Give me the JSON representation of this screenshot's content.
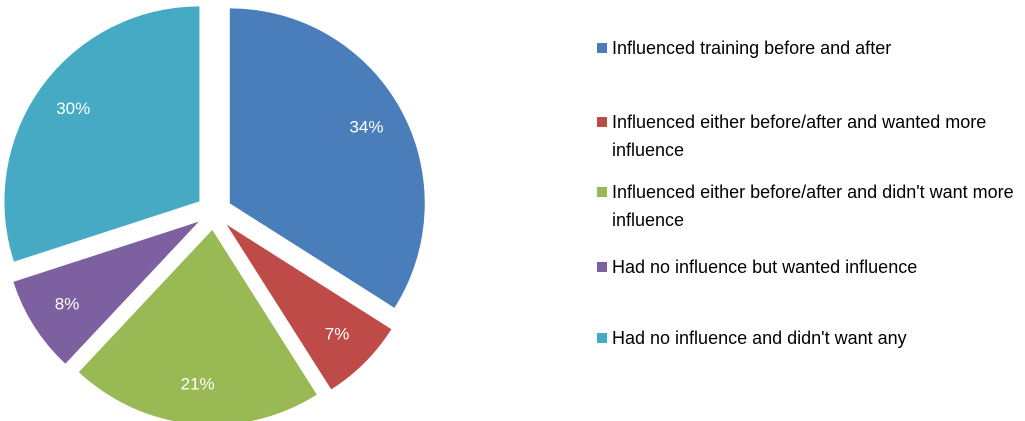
{
  "chart_data": {
    "type": "pie",
    "categories": [
      "Influenced training before and after",
      "Influenced either before/after and wanted more influence",
      "Influenced either before/after and didn't want more influence",
      "Had no influence but wanted influence",
      "Had no influence and didn't want any"
    ],
    "values": [
      34,
      7,
      21,
      8,
      30
    ],
    "value_labels": [
      "34%",
      "7%",
      "21%",
      "8%",
      "30%"
    ],
    "colors": [
      "#4a7ebb",
      "#be4b48",
      "#98b954",
      "#7d60a0",
      "#46aac5"
    ],
    "legend": "right"
  }
}
